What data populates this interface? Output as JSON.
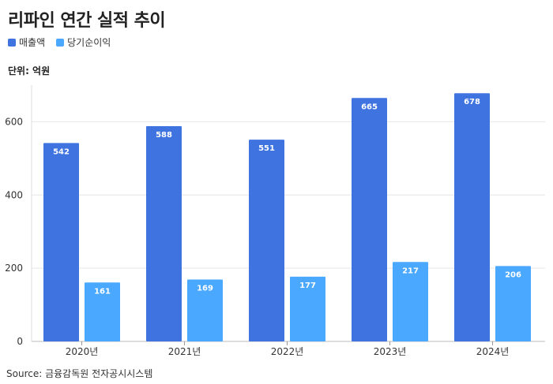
{
  "title": "리파인 연간 실적 추이",
  "unit": "단위: 억원",
  "source": "Source: 금융감독원 전자공시시스템",
  "colors": {
    "sales": "#3e73e0",
    "net_income": "#4aa8ff",
    "grid": "#e6e6e6",
    "axis": "#999999"
  },
  "legend": [
    {
      "label": "매출액",
      "color": "#3e73e0"
    },
    {
      "label": "당기순이익",
      "color": "#4aa8ff"
    }
  ],
  "chart_data": {
    "type": "bar",
    "title": "리파인 연간 실적 추이",
    "xlabel": "",
    "ylabel": "단위: 억원",
    "ylim": [
      0,
      700
    ],
    "yticks": [
      0,
      200,
      400,
      600
    ],
    "categories": [
      "2020년",
      "2021년",
      "2022년",
      "2023년",
      "2024년"
    ],
    "series": [
      {
        "name": "매출액",
        "values": [
          542,
          588,
          551,
          665,
          678
        ]
      },
      {
        "name": "당기순이익",
        "values": [
          161,
          169,
          177,
          217,
          206
        ]
      }
    ]
  }
}
